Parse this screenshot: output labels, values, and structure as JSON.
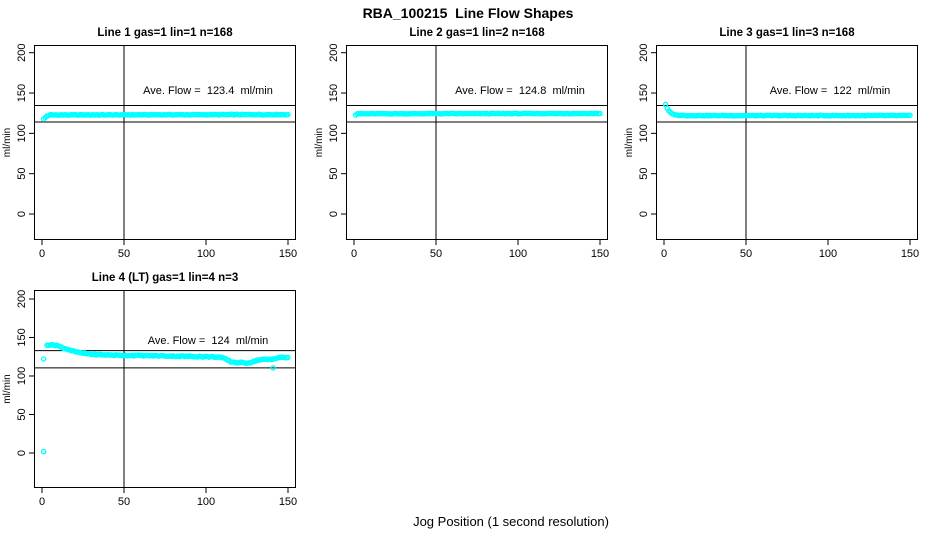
{
  "figure": {
    "title": "RBA_100215  Line Flow Shapes",
    "xlabel": "Jog Position (1 second resolution)",
    "ylabel": "ml/min"
  },
  "chart_data": {
    "type": "scatter",
    "title": "RBA_100215  Line Flow Shapes",
    "xlabel": "Jog Position (1 second resolution)",
    "ylabel": "ml/min",
    "x_ticks": [
      0,
      50,
      100,
      150
    ],
    "y_ticks": [
      0,
      50,
      100,
      150,
      200
    ],
    "xlim": [
      0,
      155
    ],
    "ylim": [
      0,
      210
    ],
    "grid": false,
    "point_color": "#00FFFF",
    "line_color": "#000000",
    "panels": [
      {
        "title": "Line 1 gas=1 lin=1 n=168",
        "annotation": "Ave. Flow =  123.4  ml/min",
        "ave_flow": 123.4,
        "n": 168,
        "vline_x": 50,
        "hlines": [
          134.5,
          114
        ],
        "band_anchors": [
          [
            1,
            117.5
          ],
          [
            2,
            119.5
          ],
          [
            3,
            121.5
          ],
          [
            5,
            122.8
          ],
          [
            60,
            123
          ],
          [
            150,
            123.3
          ]
        ],
        "noise_amp": 0.9,
        "extra_points": [],
        "outlier_points": []
      },
      {
        "title": "Line 2 gas=1 lin=2 n=168",
        "annotation": "Ave. Flow =  124.8  ml/min",
        "ave_flow": 124.8,
        "n": 168,
        "vline_x": 50,
        "hlines": [
          134.5,
          114
        ],
        "band_anchors": [
          [
            1,
            123
          ],
          [
            2,
            124.3
          ],
          [
            150,
            124.6
          ]
        ],
        "noise_amp": 0.7,
        "extra_points": [],
        "outlier_points": []
      },
      {
        "title": "Line 3 gas=1 lin=3 n=168",
        "annotation": "Ave. Flow =  122  ml/min",
        "ave_flow": 122,
        "n": 168,
        "vline_x": 50,
        "hlines": [
          134.5,
          114
        ],
        "band_anchors": [
          [
            1,
            136
          ],
          [
            2,
            131
          ],
          [
            3,
            127.5
          ],
          [
            5,
            124
          ],
          [
            8,
            122.5
          ],
          [
            15,
            122
          ],
          [
            150,
            122
          ]
        ],
        "noise_amp": 0.8,
        "extra_points": [],
        "outlier_points": []
      },
      {
        "title": "Line 4 (LT) gas=1 lin=4 n=3",
        "annotation": "Ave. Flow =  124  ml/min",
        "ave_flow": 124,
        "n": 3,
        "vline_x": 50,
        "hlines": [
          133,
          110.5
        ],
        "band_anchors": [
          [
            3,
            140.5
          ],
          [
            9,
            140
          ],
          [
            12,
            137
          ],
          [
            16,
            134.5
          ],
          [
            20,
            131.5
          ],
          [
            25,
            129.5
          ],
          [
            32,
            128
          ],
          [
            45,
            127
          ],
          [
            70,
            126.3
          ],
          [
            95,
            125.3
          ],
          [
            108,
            124.6
          ],
          [
            112,
            122
          ],
          [
            115,
            118.5
          ],
          [
            119,
            117.3
          ],
          [
            126,
            117.2
          ],
          [
            129,
            118.5
          ],
          [
            131,
            120.5
          ],
          [
            134,
            121.3
          ],
          [
            140,
            121.5
          ],
          [
            142,
            123
          ],
          [
            145,
            124
          ],
          [
            150,
            124
          ]
        ],
        "noise_amp": 1.4,
        "extra_points": [
          [
            1,
            122
          ],
          [
            1,
            2
          ]
        ],
        "outlier_points": [
          [
            141,
            110.5
          ]
        ]
      }
    ]
  }
}
